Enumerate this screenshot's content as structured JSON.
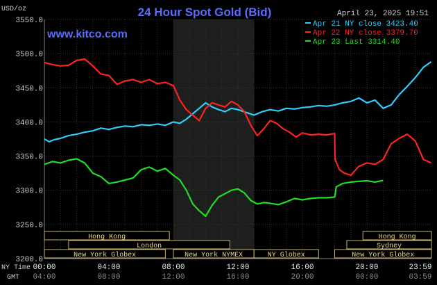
{
  "header": {
    "title": "24 Hour Spot Gold (Bid)",
    "timestamp": "April 23, 2025 19:51",
    "unit": "USD/oz",
    "brand": "www.kitco.com"
  },
  "legend": [
    {
      "label": "Apr 21 NY close 3423.40",
      "color": "#33ccff"
    },
    {
      "label": "Apr 22 NY close 3379.70",
      "color": "#ff2222"
    },
    {
      "label": "Apr 23 Last 3314.40",
      "color": "#22dd22"
    }
  ],
  "markets": [
    {
      "label": "Hong Kong",
      "start": 0,
      "end": 7.75,
      "row": 0
    },
    {
      "label": "London",
      "start": 1.5,
      "end": 11.5,
      "row": 1
    },
    {
      "label": "New York Globex",
      "start": 0,
      "end": 7.5,
      "row": 2
    },
    {
      "label": "New York NYMEX",
      "start": 8.0,
      "end": 13.0,
      "row": 2
    },
    {
      "label": "NY Globex",
      "start": 13.0,
      "end": 17.0,
      "row": 2
    },
    {
      "label": "Hong Kong",
      "start": 19.75,
      "end": 24,
      "row": 0
    },
    {
      "label": "Sydney",
      "start": 18.75,
      "end": 24,
      "row": 1
    },
    {
      "label": "New York Globex",
      "start": 18.0,
      "end": 24,
      "row": 2
    }
  ],
  "time_labels": {
    "ny_caption": "NY Time",
    "gmt_caption": "GMT",
    "ny": [
      "00:00",
      "04:00",
      "08:00",
      "12:00",
      "16:00",
      "20:00",
      "23:59"
    ],
    "gmt": [
      "04:00",
      "08:00",
      "12:00",
      "16:00",
      "20:00",
      "00:00",
      "03:59"
    ]
  },
  "chart_data": {
    "type": "line",
    "title": "24 Hour Spot Gold (Bid)",
    "ylabel": "USD/oz",
    "xlabel": "NY Time",
    "xlim": [
      0,
      24
    ],
    "ylim": [
      3200,
      3550
    ],
    "y_ticks": [
      "3550.0",
      "3500.0",
      "3450.0",
      "3400.0",
      "3350.0",
      "3300.0",
      "3250.0",
      "3200.0"
    ],
    "y_tick_values": [
      3550,
      3500,
      3450,
      3400,
      3350,
      3300,
      3250,
      3200
    ],
    "x_ticks": [
      0,
      4,
      8,
      12,
      16,
      20,
      23.98
    ],
    "grid": true,
    "legend_position": "top-right",
    "highlight_band": [
      8.0,
      13.0
    ],
    "series": [
      {
        "name": "Apr 21 NY close 3423.40",
        "color": "#33ccff",
        "x": [
          0,
          0.3,
          0.6,
          1.0,
          1.5,
          2.0,
          2.5,
          3.0,
          3.5,
          4.0,
          4.5,
          5.0,
          5.5,
          6.0,
          6.5,
          7.0,
          7.5,
          8.0,
          8.4,
          8.8,
          9.2,
          9.6,
          10.0,
          10.4,
          10.8,
          11.2,
          11.6,
          12.0,
          12.5,
          13.0,
          13.5,
          14.0,
          14.5,
          15.0,
          15.5,
          16.0,
          16.5,
          17.0,
          17.5,
          18.0,
          18.5,
          19.0,
          19.5,
          20.0,
          20.5,
          21.0,
          21.5,
          22.0,
          22.5,
          23.0,
          23.5,
          23.98
        ],
        "y": [
          3375,
          3371,
          3374,
          3376,
          3380,
          3382,
          3385,
          3387,
          3391,
          3389,
          3392,
          3394,
          3393,
          3396,
          3395,
          3397,
          3395,
          3400,
          3398,
          3404,
          3412,
          3420,
          3428,
          3422,
          3418,
          3415,
          3420,
          3418,
          3414,
          3410,
          3415,
          3418,
          3416,
          3420,
          3419,
          3421,
          3422,
          3424,
          3423,
          3425,
          3428,
          3430,
          3435,
          3428,
          3432,
          3420,
          3425,
          3440,
          3452,
          3465,
          3480,
          3488
        ]
      },
      {
        "name": "Apr 22 NY close 3379.70",
        "color": "#ff2222",
        "x": [
          0,
          0.5,
          1.0,
          1.5,
          2.0,
          2.5,
          3.0,
          3.5,
          4.0,
          4.5,
          5.0,
          5.5,
          6.0,
          6.5,
          7.0,
          7.5,
          8.0,
          8.4,
          8.8,
          9.2,
          9.6,
          10.0,
          10.4,
          10.8,
          11.2,
          11.6,
          12.0,
          12.4,
          12.8,
          13.2,
          13.6,
          14.0,
          14.4,
          14.8,
          15.2,
          15.6,
          16.0,
          16.5,
          17.0,
          17.5,
          18.0,
          18.02,
          18.3,
          18.6,
          19.0,
          19.5,
          20.0,
          20.5,
          21.0,
          21.5,
          22.0,
          22.5,
          23.0,
          23.5,
          23.98
        ],
        "y": [
          3487,
          3484,
          3482,
          3483,
          3490,
          3492,
          3482,
          3470,
          3468,
          3455,
          3460,
          3462,
          3458,
          3462,
          3456,
          3458,
          3453,
          3432,
          3418,
          3410,
          3402,
          3420,
          3428,
          3425,
          3422,
          3430,
          3425,
          3415,
          3395,
          3380,
          3390,
          3402,
          3398,
          3390,
          3385,
          3378,
          3384,
          3381,
          3382,
          3381,
          3383,
          3345,
          3330,
          3325,
          3322,
          3335,
          3340,
          3338,
          3345,
          3368,
          3376,
          3382,
          3372,
          3345,
          3340
        ]
      },
      {
        "name": "Apr 23 Last 3314.40",
        "color": "#22dd22",
        "x": [
          0,
          0.5,
          1.0,
          1.5,
          2.0,
          2.5,
          3.0,
          3.5,
          4.0,
          4.5,
          5.0,
          5.5,
          6.0,
          6.5,
          7.0,
          7.5,
          8.0,
          8.4,
          8.8,
          9.2,
          9.6,
          10.0,
          10.4,
          10.8,
          11.2,
          11.6,
          12.0,
          12.4,
          12.8,
          13.2,
          13.6,
          14.0,
          14.5,
          15.0,
          15.5,
          16.0,
          16.5,
          17.0,
          17.5,
          18.0,
          18.1,
          18.5,
          19.0,
          19.5,
          20.0,
          20.5,
          21.0
        ],
        "y": [
          3338,
          3342,
          3340,
          3344,
          3346,
          3340,
          3325,
          3320,
          3310,
          3312,
          3315,
          3318,
          3330,
          3334,
          3328,
          3332,
          3322,
          3315,
          3300,
          3280,
          3270,
          3262,
          3278,
          3290,
          3295,
          3300,
          3302,
          3296,
          3285,
          3280,
          3282,
          3281,
          3279,
          3283,
          3288,
          3286,
          3288,
          3289,
          3289,
          3290,
          3305,
          3310,
          3312,
          3313,
          3314,
          3312,
          3314.4
        ]
      }
    ]
  }
}
